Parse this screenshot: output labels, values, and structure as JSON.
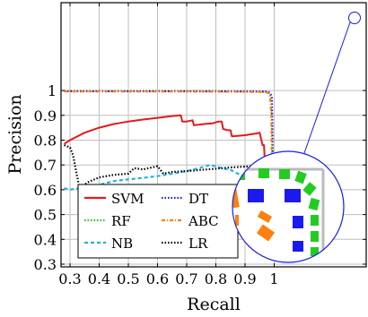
{
  "chart_data": {
    "type": "line",
    "title": "",
    "xlabel": "Recall",
    "ylabel": "Precision",
    "xlim": [
      0.28,
      1.02
    ],
    "ylim": [
      0.3,
      1.02
    ],
    "xticks": [
      0.3,
      0.4,
      0.5,
      0.6,
      0.7,
      0.8,
      0.9,
      1
    ],
    "xtick_labels": [
      "0.3",
      "0.4",
      "0.5",
      "0.6",
      "0.7",
      "0.8",
      "0.9",
      "1"
    ],
    "yticks": [
      0.3,
      0.4,
      0.5,
      0.6,
      0.7,
      0.8,
      0.9,
      1
    ],
    "ytick_labels": [
      "0.3",
      "0.4",
      "0.5",
      "0.6",
      "0.7",
      "0.8",
      "0.9",
      "1"
    ],
    "grid": true,
    "legend_position": "bottom-left",
    "series": [
      {
        "name": "SVM",
        "color": "#e41a1c",
        "dash": "solid",
        "points": [
          [
            0.28,
            0.785
          ],
          [
            0.3,
            0.8
          ],
          [
            0.35,
            0.83
          ],
          [
            0.4,
            0.85
          ],
          [
            0.45,
            0.865
          ],
          [
            0.5,
            0.875
          ],
          [
            0.55,
            0.883
          ],
          [
            0.6,
            0.89
          ],
          [
            0.65,
            0.897
          ],
          [
            0.68,
            0.9
          ],
          [
            0.685,
            0.875
          ],
          [
            0.7,
            0.875
          ],
          [
            0.72,
            0.88
          ],
          [
            0.725,
            0.86
          ],
          [
            0.76,
            0.865
          ],
          [
            0.79,
            0.868
          ],
          [
            0.8,
            0.872
          ],
          [
            0.81,
            0.875
          ],
          [
            0.82,
            0.875
          ],
          [
            0.825,
            0.845
          ],
          [
            0.84,
            0.84
          ],
          [
            0.85,
            0.84
          ],
          [
            0.855,
            0.815
          ],
          [
            0.9,
            0.82
          ],
          [
            0.94,
            0.827
          ],
          [
            0.95,
            0.83
          ],
          [
            0.96,
            0.78
          ],
          [
            0.965,
            0.78
          ],
          [
            0.975,
            0.56
          ],
          [
            0.985,
            0.555
          ],
          [
            0.99,
            0.4
          ]
        ]
      },
      {
        "name": "RF",
        "color": "#22cc22",
        "dash": "dotted",
        "points": [
          [
            0.28,
            0.997
          ],
          [
            0.5,
            0.997
          ],
          [
            0.7,
            0.997
          ],
          [
            0.9,
            0.996
          ],
          [
            0.97,
            0.995
          ],
          [
            0.985,
            0.99
          ],
          [
            0.99,
            0.97
          ],
          [
            0.993,
            0.85
          ],
          [
            0.995,
            0.6
          ],
          [
            0.997,
            0.4
          ]
        ]
      },
      {
        "name": "NB",
        "color": "#22b2e0",
        "dash": "dashed",
        "points": [
          [
            0.28,
            0.607
          ],
          [
            0.3,
            0.6
          ],
          [
            0.32,
            0.605
          ],
          [
            0.35,
            0.603
          ],
          [
            0.4,
            0.62
          ],
          [
            0.45,
            0.635
          ],
          [
            0.5,
            0.642
          ],
          [
            0.55,
            0.648
          ],
          [
            0.6,
            0.655
          ],
          [
            0.65,
            0.665
          ],
          [
            0.7,
            0.675
          ],
          [
            0.75,
            0.69
          ],
          [
            0.78,
            0.7
          ],
          [
            0.8,
            0.695
          ],
          [
            0.82,
            0.687
          ],
          [
            0.85,
            0.68
          ],
          [
            0.88,
            0.662
          ],
          [
            0.9,
            0.652
          ],
          [
            0.92,
            0.645
          ],
          [
            0.95,
            0.638
          ],
          [
            0.97,
            0.625
          ],
          [
            0.98,
            0.63
          ],
          [
            0.985,
            0.61
          ],
          [
            0.99,
            0.4
          ]
        ]
      },
      {
        "name": "DT",
        "color": "#1a1aee",
        "dash": "dotted",
        "points": [
          [
            0.28,
            0.998
          ],
          [
            0.5,
            0.998
          ],
          [
            0.7,
            0.998
          ],
          [
            0.9,
            0.997
          ],
          [
            0.97,
            0.996
          ],
          [
            0.982,
            0.993
          ],
          [
            0.988,
            0.985
          ],
          [
            0.992,
            0.97
          ],
          [
            0.994,
            0.85
          ],
          [
            0.996,
            0.6
          ],
          [
            0.998,
            0.45
          ]
        ]
      },
      {
        "name": "ABC",
        "color": "#ff7f0e",
        "dash": "dashdot",
        "points": [
          [
            0.28,
            0.996
          ],
          [
            0.5,
            0.996
          ],
          [
            0.7,
            0.996
          ],
          [
            0.9,
            0.995
          ],
          [
            0.97,
            0.994
          ],
          [
            0.98,
            0.99
          ],
          [
            0.986,
            0.975
          ],
          [
            0.99,
            0.9
          ],
          [
            0.993,
            0.6
          ],
          [
            0.995,
            0.4
          ]
        ]
      },
      {
        "name": "LR",
        "color": "#000000",
        "dash": "dotted",
        "points": [
          [
            0.28,
            0.78
          ],
          [
            0.29,
            0.775
          ],
          [
            0.3,
            0.77
          ],
          [
            0.31,
            0.74
          ],
          [
            0.32,
            0.68
          ],
          [
            0.33,
            0.62
          ],
          [
            0.34,
            0.61
          ],
          [
            0.36,
            0.63
          ],
          [
            0.4,
            0.65
          ],
          [
            0.45,
            0.66
          ],
          [
            0.5,
            0.665
          ],
          [
            0.52,
            0.687
          ],
          [
            0.55,
            0.682
          ],
          [
            0.6,
            0.695
          ],
          [
            0.62,
            0.665
          ],
          [
            0.65,
            0.672
          ],
          [
            0.7,
            0.675
          ],
          [
            0.75,
            0.68
          ],
          [
            0.8,
            0.685
          ],
          [
            0.85,
            0.69
          ],
          [
            0.9,
            0.693
          ],
          [
            0.95,
            0.697
          ],
          [
            0.97,
            0.695
          ],
          [
            0.98,
            0.7
          ],
          [
            0.985,
            0.68
          ],
          [
            0.99,
            0.4
          ]
        ]
      }
    ],
    "inset": {
      "description_source": "zoom circle magnifying top-right corner near recall 1, precision 1"
    }
  }
}
